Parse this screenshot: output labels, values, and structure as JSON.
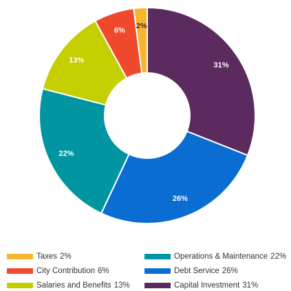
{
  "chart_data": {
    "type": "donut",
    "categories": [
      "Taxes",
      "City Contribution",
      "Salaries and Benefits",
      "Operations & Maintenance",
      "Debt Service",
      "Capital Investment"
    ],
    "values": [
      2,
      6,
      13,
      22,
      26,
      31
    ],
    "value_labels": [
      "2%",
      "6%",
      "13%",
      "22%",
      "26%",
      "31%"
    ],
    "colors": [
      "#f7b52c",
      "#f0492b",
      "#c5cf00",
      "#0095a1",
      "#0a6dd1",
      "#5b2b5f"
    ],
    "value_label_colors": [
      "#333333",
      "#ffffff",
      "#ffffff",
      "#ffffff",
      "#ffffff",
      "#ffffff"
    ]
  }
}
